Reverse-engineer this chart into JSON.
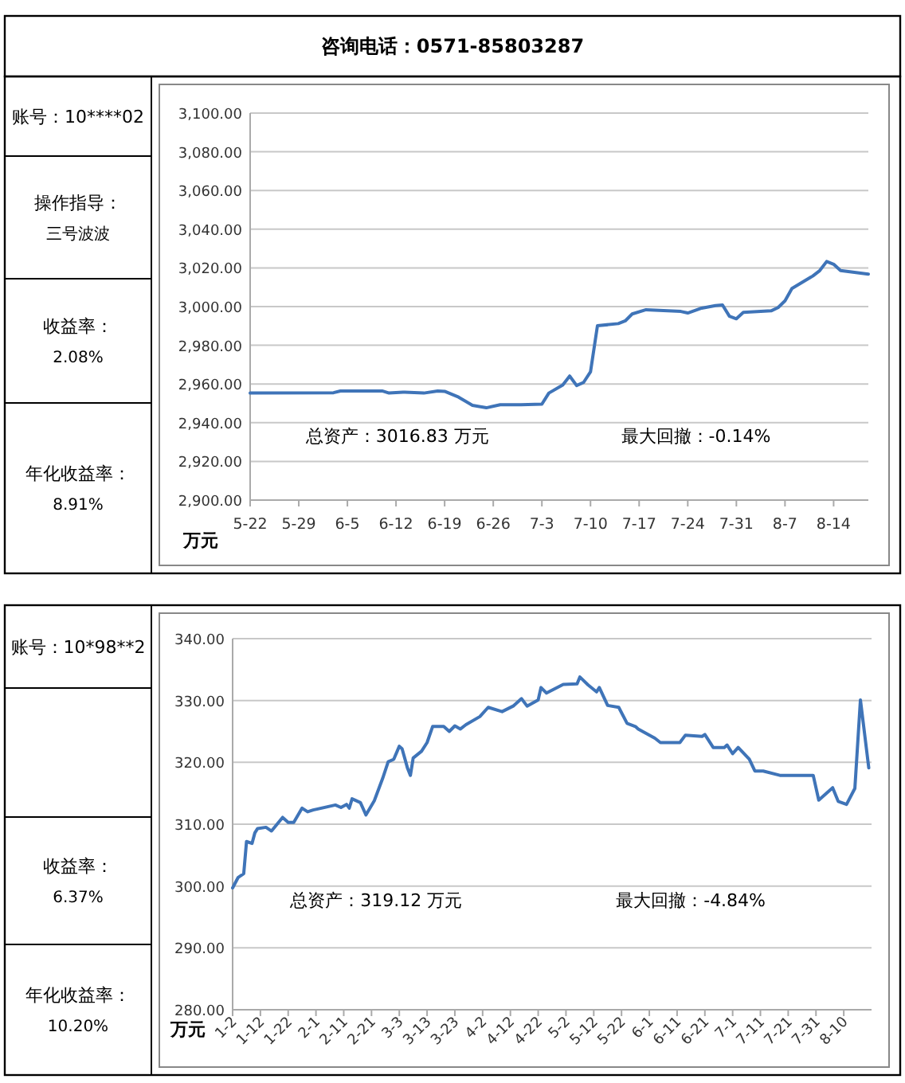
{
  "chart_data": [
    {
      "type": "line",
      "title": "咨询电话：0571-85803287",
      "ylabel": "万元",
      "grid": "y",
      "annotations": [
        "总资产：3016.83 万元",
        "最大回撤：-0.14%",
        "账号：10****02",
        "操作指导：",
        "三号波波",
        "收益率：",
        "2.08%",
        "年化收益率：",
        "8.91%"
      ],
      "xlim": [
        "--05-22",
        "--08-19"
      ],
      "ylim": [
        2900,
        3100
      ],
      "xticks": [
        {
          "value": "--05-22",
          "label": "5-22"
        },
        {
          "value": "--05-29",
          "label": "5-29"
        },
        {
          "value": "--06-05",
          "label": "6-5"
        },
        {
          "value": "--06-12",
          "label": "6-12"
        },
        {
          "value": "--06-19",
          "label": "6-19"
        },
        {
          "value": "--06-26",
          "label": "6-26"
        },
        {
          "value": "--07-03",
          "label": "7-3"
        },
        {
          "value": "--07-10",
          "label": "7-10"
        },
        {
          "value": "--07-17",
          "label": "7-17"
        },
        {
          "value": "--07-24",
          "label": "7-24"
        },
        {
          "value": "--07-31",
          "label": "7-31"
        },
        {
          "value": "--08-07",
          "label": "8-7"
        },
        {
          "value": "--08-14",
          "label": "8-14"
        }
      ],
      "yticks": [
        {
          "value": 2900,
          "label": "2,900.00"
        },
        {
          "value": 2920,
          "label": "2,920.00"
        },
        {
          "value": 2940,
          "label": "2,940.00"
        },
        {
          "value": 2960,
          "label": "2,960.00"
        },
        {
          "value": 2980,
          "label": "2,980.00"
        },
        {
          "value": 3000,
          "label": "3,000.00"
        },
        {
          "value": 3020,
          "label": "3,020.00"
        },
        {
          "value": 3040,
          "label": "3,040.00"
        },
        {
          "value": 3060,
          "label": "3,060.00"
        },
        {
          "value": 3080,
          "label": "3,080.00"
        },
        {
          "value": 3100,
          "label": "3,100.00"
        }
      ],
      "x": [
        "--05-22",
        "--06-03",
        "--06-04",
        "--06-10",
        "--06-11",
        "--06-13",
        "--06-16",
        "--06-18",
        "--06-19",
        "--06-21",
        "--06-23",
        "--06-25",
        "--06-27",
        "--06-30",
        "--07-03",
        "--07-04",
        "--07-06",
        "--07-07",
        "--07-08",
        "--07-09",
        "--07-10",
        "--07-11",
        "--07-14",
        "--07-15",
        "--07-16",
        "--07-18",
        "--07-23",
        "--07-24",
        "--07-26",
        "--07-28",
        "--07-29",
        "--07-30",
        "--07-31",
        "--08-01",
        "--08-05",
        "--08-06",
        "--08-07",
        "--08-08",
        "--08-11",
        "--08-12",
        "--08-13",
        "--08-14",
        "--08-15",
        "--08-19"
      ],
      "series": [
        {
          "color": "#3f74b8",
          "values": [
            2955.3,
            2955.5,
            2956.4,
            2956.4,
            2955.3,
            2955.8,
            2955.3,
            2956.4,
            2956.2,
            2953.2,
            2949.0,
            2947.7,
            2949.3,
            2949.3,
            2949.6,
            2955.3,
            2959.5,
            2964.1,
            2959.2,
            2960.8,
            2966.3,
            2990.1,
            2991.2,
            2992.6,
            2996.2,
            2998.4,
            2997.5,
            2996.7,
            2999.2,
            3000.5,
            3000.8,
            2995.0,
            2993.7,
            2997.0,
            2997.8,
            2999.5,
            3003.0,
            3009.4,
            3015.8,
            3018.6,
            3023.3,
            3021.9,
            3018.6,
            3016.8
          ]
        }
      ]
    },
    {
      "type": "line",
      "ylabel": "万元",
      "grid": "y",
      "annotations": [
        "总资产：319.12 万元",
        "最大回撤：-4.84%",
        "账号：10*98**2",
        "收益率：",
        "6.37%",
        "年化收益率：",
        "10.20%"
      ],
      "xlim": [
        "--01-02",
        "--08-20"
      ],
      "ylim": [
        280,
        340
      ],
      "xticks": [
        {
          "value": "--01-02",
          "label": "1-2"
        },
        {
          "value": "--01-12",
          "label": "1-12"
        },
        {
          "value": "--01-22",
          "label": "1-22"
        },
        {
          "value": "--02-01",
          "label": "2-1"
        },
        {
          "value": "--02-11",
          "label": "2-11"
        },
        {
          "value": "--02-21",
          "label": "2-21"
        },
        {
          "value": "--03-03",
          "label": "3-3"
        },
        {
          "value": "--03-13",
          "label": "3-13"
        },
        {
          "value": "--03-23",
          "label": "3-23"
        },
        {
          "value": "--04-02",
          "label": "4-2"
        },
        {
          "value": "--04-12",
          "label": "4-12"
        },
        {
          "value": "--04-22",
          "label": "4-22"
        },
        {
          "value": "--05-02",
          "label": "5-2"
        },
        {
          "value": "--05-12",
          "label": "5-12"
        },
        {
          "value": "--05-22",
          "label": "5-22"
        },
        {
          "value": "--06-01",
          "label": "6-1"
        },
        {
          "value": "--06-11",
          "label": "6-11"
        },
        {
          "value": "--06-21",
          "label": "6-21"
        },
        {
          "value": "--07-01",
          "label": "7-1"
        },
        {
          "value": "--07-11",
          "label": "7-11"
        },
        {
          "value": "--07-21",
          "label": "7-21"
        },
        {
          "value": "--07-31",
          "label": "7-31"
        },
        {
          "value": "--08-10",
          "label": "8-10"
        }
      ],
      "yticks": [
        {
          "value": 280,
          "label": "280.00"
        },
        {
          "value": 290,
          "label": "290.00"
        },
        {
          "value": 300,
          "label": "300.00"
        },
        {
          "value": 310,
          "label": "310.00"
        },
        {
          "value": 320,
          "label": "320.00"
        },
        {
          "value": 330,
          "label": "330.00"
        },
        {
          "value": 340,
          "label": "340.00"
        }
      ],
      "x": [
        "--01-02",
        "--01-04",
        "--01-06",
        "--01-07",
        "--01-09",
        "--01-10",
        "--01-11",
        "--01-14",
        "--01-16",
        "--01-18",
        "--01-20",
        "--01-22",
        "--01-24",
        "--01-27",
        "--01-29",
        "--01-31",
        "--02-08",
        "--02-10",
        "--02-12",
        "--02-13",
        "--02-14",
        "--02-17",
        "--02-19",
        "--02-22",
        "--02-25",
        "--02-27",
        "--03-01",
        "--03-03",
        "--03-04",
        "--03-06",
        "--03-07",
        "--03-08",
        "--03-11",
        "--03-13",
        "--03-15",
        "--03-19",
        "--03-21",
        "--03-23",
        "--03-25",
        "--03-27",
        "--04-01",
        "--04-04",
        "--04-09",
        "--04-13",
        "--04-16",
        "--04-18",
        "--04-22",
        "--04-23",
        "--04-25",
        "--05-01",
        "--05-06",
        "--05-07",
        "--05-10",
        "--05-13",
        "--05-14",
        "--05-17",
        "--05-21",
        "--05-24",
        "--05-27",
        "--05-28",
        "--06-03",
        "--06-05",
        "--06-12",
        "--06-14",
        "--06-20",
        "--06-21",
        "--06-24",
        "--06-28",
        "--06-29",
        "--07-01",
        "--07-03",
        "--07-07",
        "--07-09",
        "--07-12",
        "--07-18",
        "--07-30",
        "--08-01",
        "--08-06",
        "--08-08",
        "--08-11",
        "--08-14",
        "--08-16",
        "--08-19"
      ],
      "series": [
        {
          "color": "#3f74b8",
          "values": [
            299.7,
            301.4,
            302.0,
            307.2,
            306.9,
            308.6,
            309.3,
            309.5,
            308.9,
            310.0,
            311.1,
            310.3,
            310.3,
            312.6,
            312.0,
            312.3,
            313.1,
            312.7,
            313.2,
            312.6,
            314.1,
            313.5,
            311.5,
            313.8,
            317.4,
            320.1,
            320.5,
            322.6,
            322.2,
            319.0,
            317.9,
            320.7,
            321.8,
            323.2,
            325.8,
            325.8,
            325.0,
            325.9,
            325.4,
            326.1,
            327.4,
            328.9,
            328.2,
            329.1,
            330.3,
            329.1,
            330.1,
            332.1,
            331.2,
            332.6,
            332.7,
            333.8,
            332.5,
            331.4,
            332.1,
            329.2,
            328.9,
            326.3,
            325.8,
            325.4,
            323.9,
            323.2,
            323.2,
            324.4,
            324.2,
            324.5,
            322.4,
            322.4,
            322.8,
            321.4,
            322.4,
            320.5,
            318.6,
            318.6,
            317.9,
            317.9,
            313.9,
            315.9,
            313.7,
            313.2,
            315.8,
            330.1,
            319.1
          ]
        }
      ]
    }
  ]
}
